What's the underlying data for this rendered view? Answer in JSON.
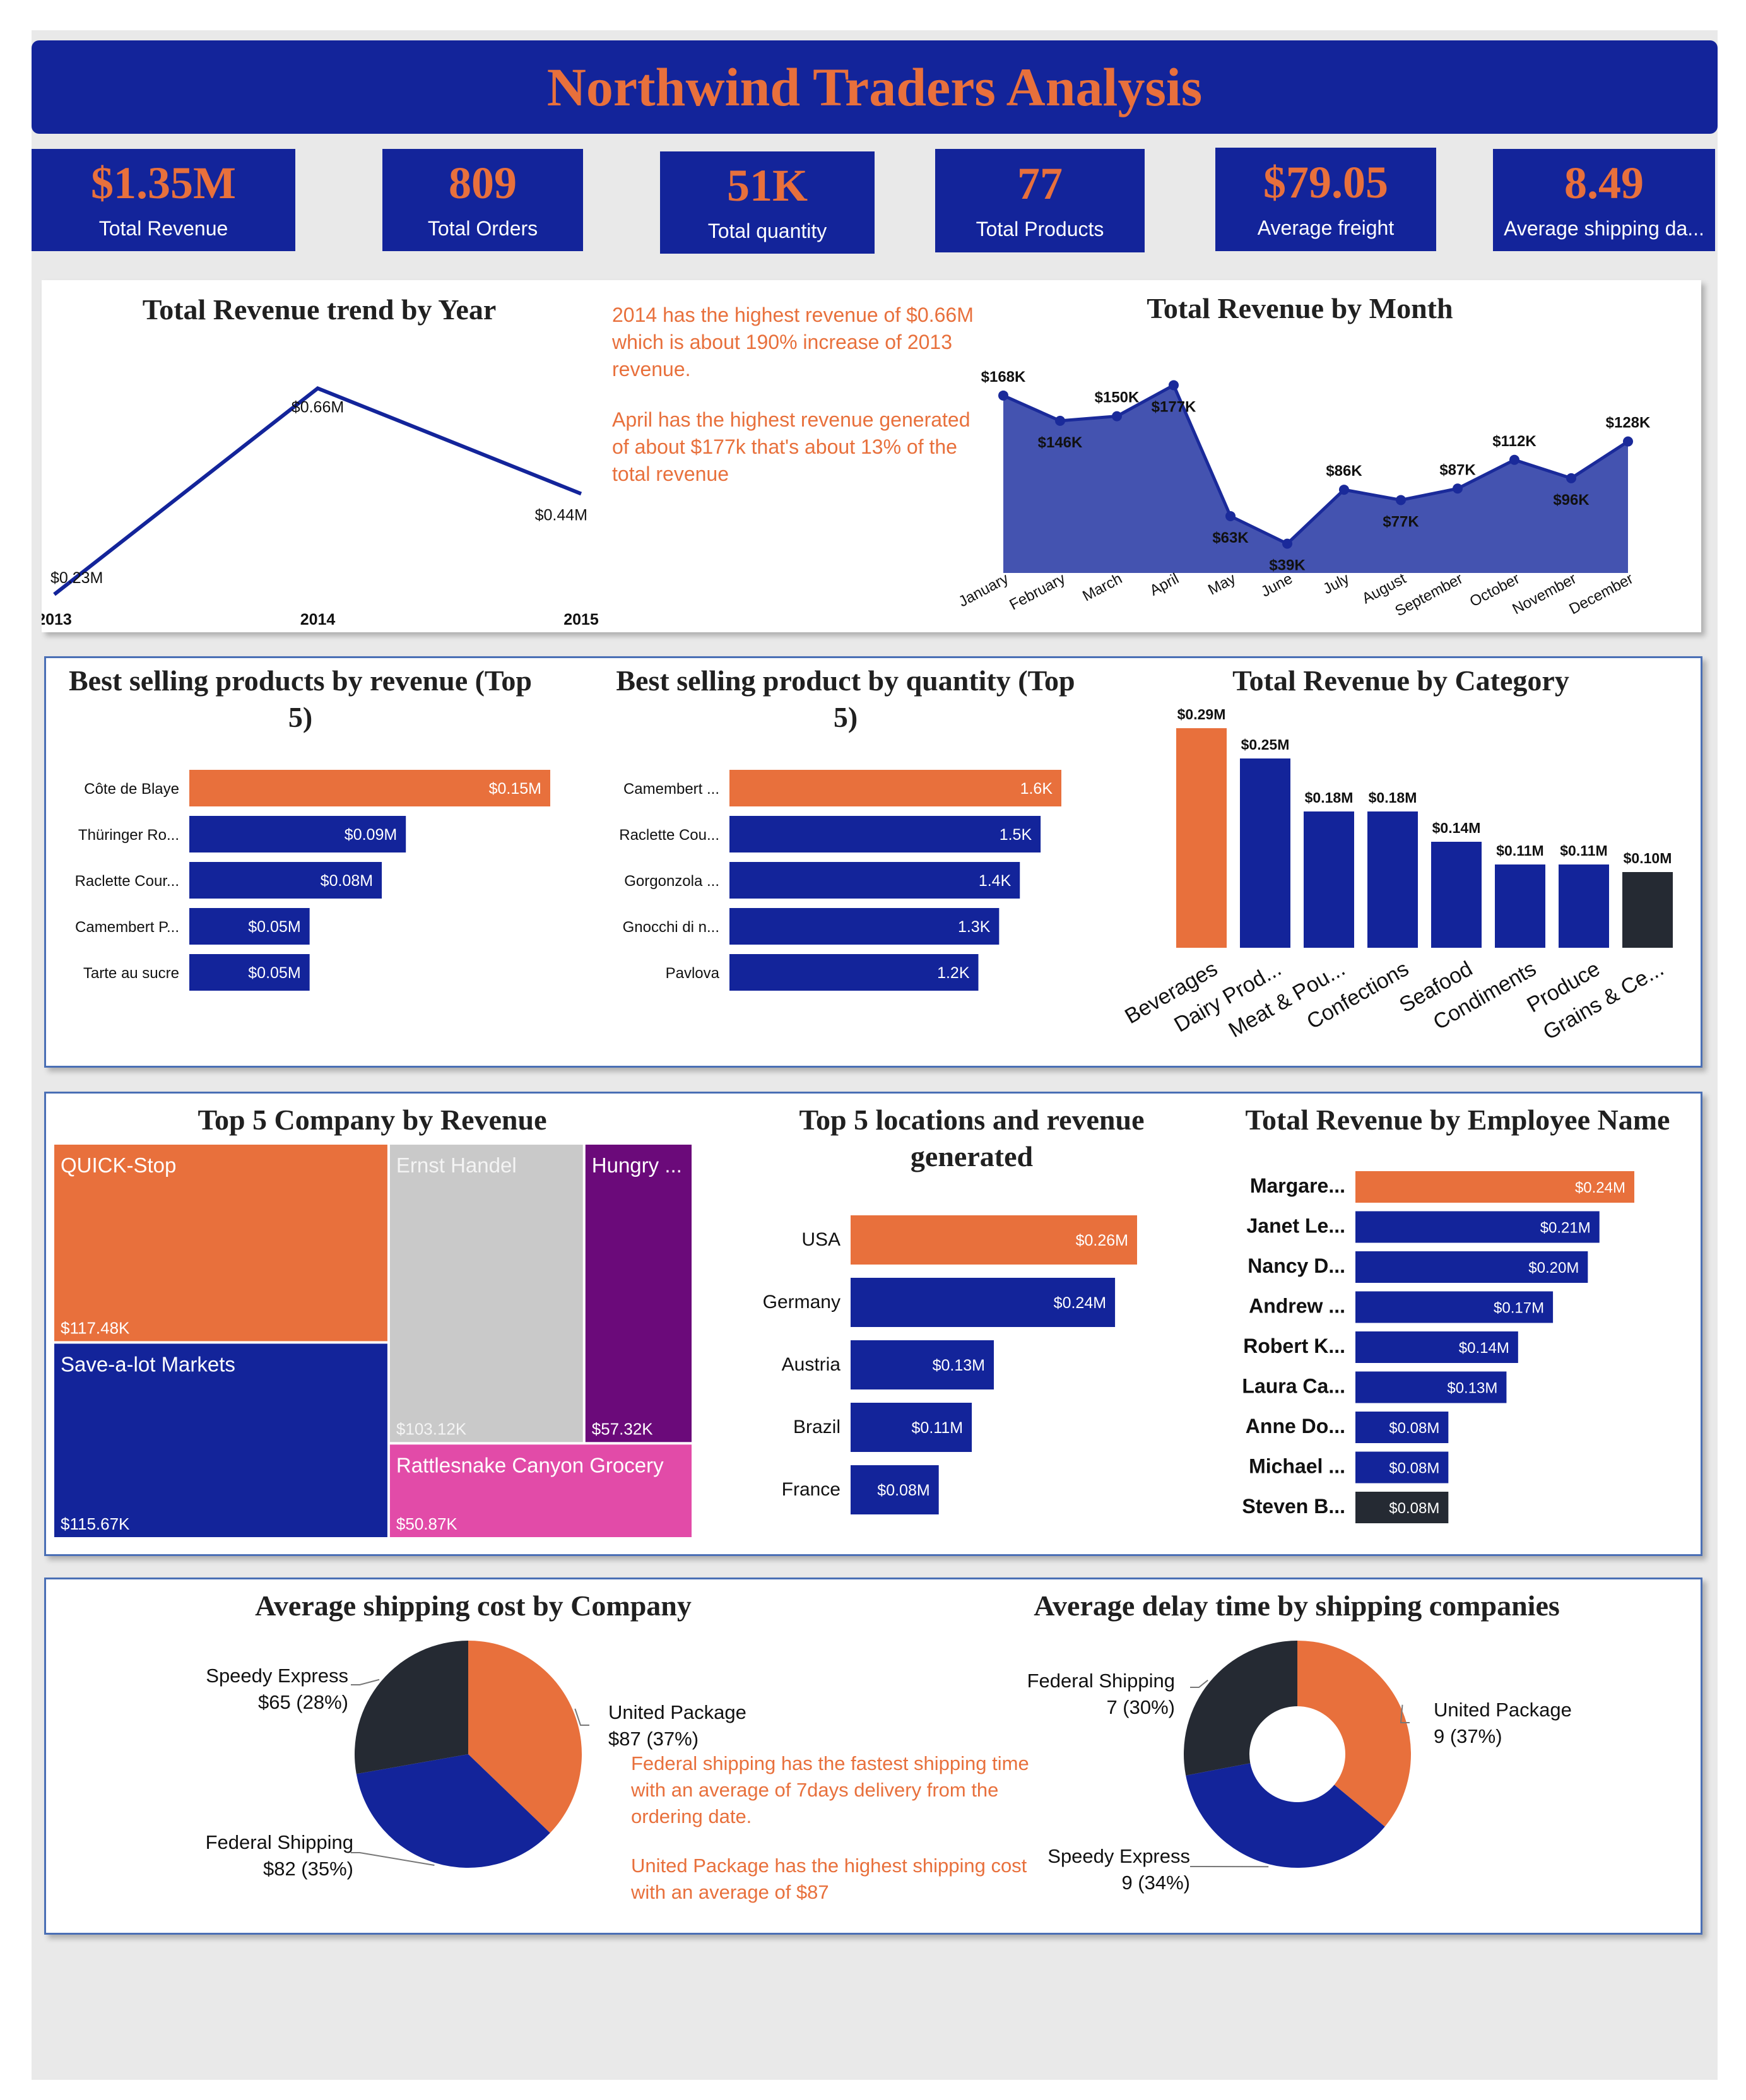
{
  "header": {
    "title": "Northwind Traders Analysis"
  },
  "kpis": [
    {
      "value": "$1.35M",
      "label": "Total Revenue"
    },
    {
      "value": "809",
      "label": "Total Orders"
    },
    {
      "value": "51K",
      "label": "Total quantity"
    },
    {
      "value": "77",
      "label": "Total Products"
    },
    {
      "value": "$79.05",
      "label": "Average freight"
    },
    {
      "value": "8.49",
      "label": "Average shipping da..."
    }
  ],
  "notes": {
    "trend_1": "2014 has the highest revenue of $0.66M which is  about 190% increase of 2013 revenue.",
    "trend_2": "April has the highest revenue generated of about $177k that's about 13% of the total revenue",
    "ship_1": "Federal shipping has the fastest shipping time with an average of 7days delivery from the ordering date.",
    "ship_2": "United  Package has the highest shipping cost with an average of $87"
  },
  "colors": {
    "navy": "#13249a",
    "orange": "#e8703c",
    "dark": "#252a33",
    "gray": "#c9c9c9",
    "purple": "#6b0a7a",
    "pink": "#e24ba8"
  },
  "chart_data": [
    {
      "id": "year",
      "type": "line",
      "title": "Total Revenue trend by Year",
      "x": [
        "2013",
        "2014",
        "2015"
      ],
      "values": [
        0.23,
        0.66,
        0.44
      ],
      "labels": [
        "$0.23M",
        "$0.66M",
        "$0.44M"
      ]
    },
    {
      "id": "month",
      "type": "area",
      "title": "Total Revenue by Month",
      "x": [
        "January",
        "February",
        "March",
        "April",
        "May",
        "June",
        "July",
        "August",
        "September",
        "October",
        "November",
        "December"
      ],
      "values": [
        168,
        146,
        150,
        177,
        63,
        39,
        86,
        77,
        87,
        112,
        96,
        128
      ],
      "labels": [
        "$168K",
        "$146K",
        "$150K",
        "$177K",
        "$63K",
        "$39K",
        "$86K",
        "$77K",
        "$87K",
        "$112K",
        "$96K",
        "$128K"
      ]
    },
    {
      "id": "prodrev",
      "type": "bar",
      "orientation": "horizontal",
      "title": "Best selling products by revenue (Top 5)",
      "categories": [
        "Côte de Blaye",
        "Thüringer Ro...",
        "Raclette Cour...",
        "Camembert P...",
        "Tarte au sucre"
      ],
      "values": [
        0.15,
        0.09,
        0.08,
        0.05,
        0.05
      ],
      "labels": [
        "$0.15M",
        "$0.09M",
        "$0.08M",
        "$0.05M",
        "$0.05M"
      ]
    },
    {
      "id": "prodqty",
      "type": "bar",
      "orientation": "horizontal",
      "title": "Best selling product by quantity (Top 5)",
      "categories": [
        "Camembert ...",
        "Raclette Cou...",
        "Gorgonzola ...",
        "Gnocchi di n...",
        "Pavlova"
      ],
      "values": [
        1.6,
        1.5,
        1.4,
        1.3,
        1.2
      ],
      "labels": [
        "1.6K",
        "1.5K",
        "1.4K",
        "1.3K",
        "1.2K"
      ]
    },
    {
      "id": "category",
      "type": "bar",
      "orientation": "vertical",
      "title": "Total Revenue by Category",
      "categories": [
        "Beverages",
        "Dairy Prod...",
        "Meat & Pou...",
        "Confections",
        "Seafood",
        "Condiments",
        "Produce",
        "Grains & Ce..."
      ],
      "values": [
        0.29,
        0.25,
        0.18,
        0.18,
        0.14,
        0.11,
        0.11,
        0.1
      ],
      "labels": [
        "$0.29M",
        "$0.25M",
        "$0.18M",
        "$0.18M",
        "$0.14M",
        "$0.11M",
        "$0.11M",
        "$0.10M"
      ]
    },
    {
      "id": "company",
      "type": "treemap",
      "title": "Top 5 Company by Revenue",
      "categories": [
        "QUICK-Stop",
        "Save-a-lot Markets",
        "Ernst Handel",
        "Hungry ...",
        "Rattlesnake Canyon Grocery"
      ],
      "values": [
        117.48,
        115.67,
        103.12,
        57.32,
        50.87
      ],
      "labels": [
        "$117.48K",
        "$115.67K",
        "$103.12K",
        "$57.32K",
        "$50.87K"
      ]
    },
    {
      "id": "location",
      "type": "bar",
      "orientation": "horizontal",
      "title": "Top 5 locations and revenue generated",
      "categories": [
        "USA",
        "Germany",
        "Austria",
        "Brazil",
        "France"
      ],
      "values": [
        0.26,
        0.24,
        0.13,
        0.11,
        0.08
      ],
      "labels": [
        "$0.26M",
        "$0.24M",
        "$0.13M",
        "$0.11M",
        "$0.08M"
      ]
    },
    {
      "id": "employee",
      "type": "bar",
      "orientation": "horizontal",
      "title": "Total Revenue by Employee Name",
      "categories": [
        "Margare...",
        "Janet Le...",
        "Nancy D...",
        "Andrew ...",
        "Robert K...",
        "Laura Ca...",
        "Anne Do...",
        "Michael ...",
        "Steven B..."
      ],
      "values": [
        0.24,
        0.21,
        0.2,
        0.17,
        0.14,
        0.13,
        0.08,
        0.08,
        0.08
      ],
      "labels": [
        "$0.24M",
        "$0.21M",
        "$0.20M",
        "$0.17M",
        "$0.14M",
        "$0.13M",
        "$0.08M",
        "$0.08M",
        "$0.08M"
      ]
    },
    {
      "id": "shipcost",
      "type": "pie",
      "title": "Average shipping cost by Company",
      "categories": [
        "United Package",
        "Federal Shipping",
        "Speedy Express"
      ],
      "values": [
        87,
        82,
        65
      ],
      "labels": [
        "$87 (37%)",
        "$82 (35%)",
        "$65 (28%)"
      ]
    },
    {
      "id": "delay",
      "type": "pie",
      "title": "Average delay time by shipping companies",
      "categories": [
        "United Package",
        "Speedy Express",
        "Federal Shipping"
      ],
      "values": [
        9,
        9,
        7
      ],
      "labels": [
        "9 (37%)",
        "9 (34%)",
        "7 (30%)"
      ]
    }
  ]
}
